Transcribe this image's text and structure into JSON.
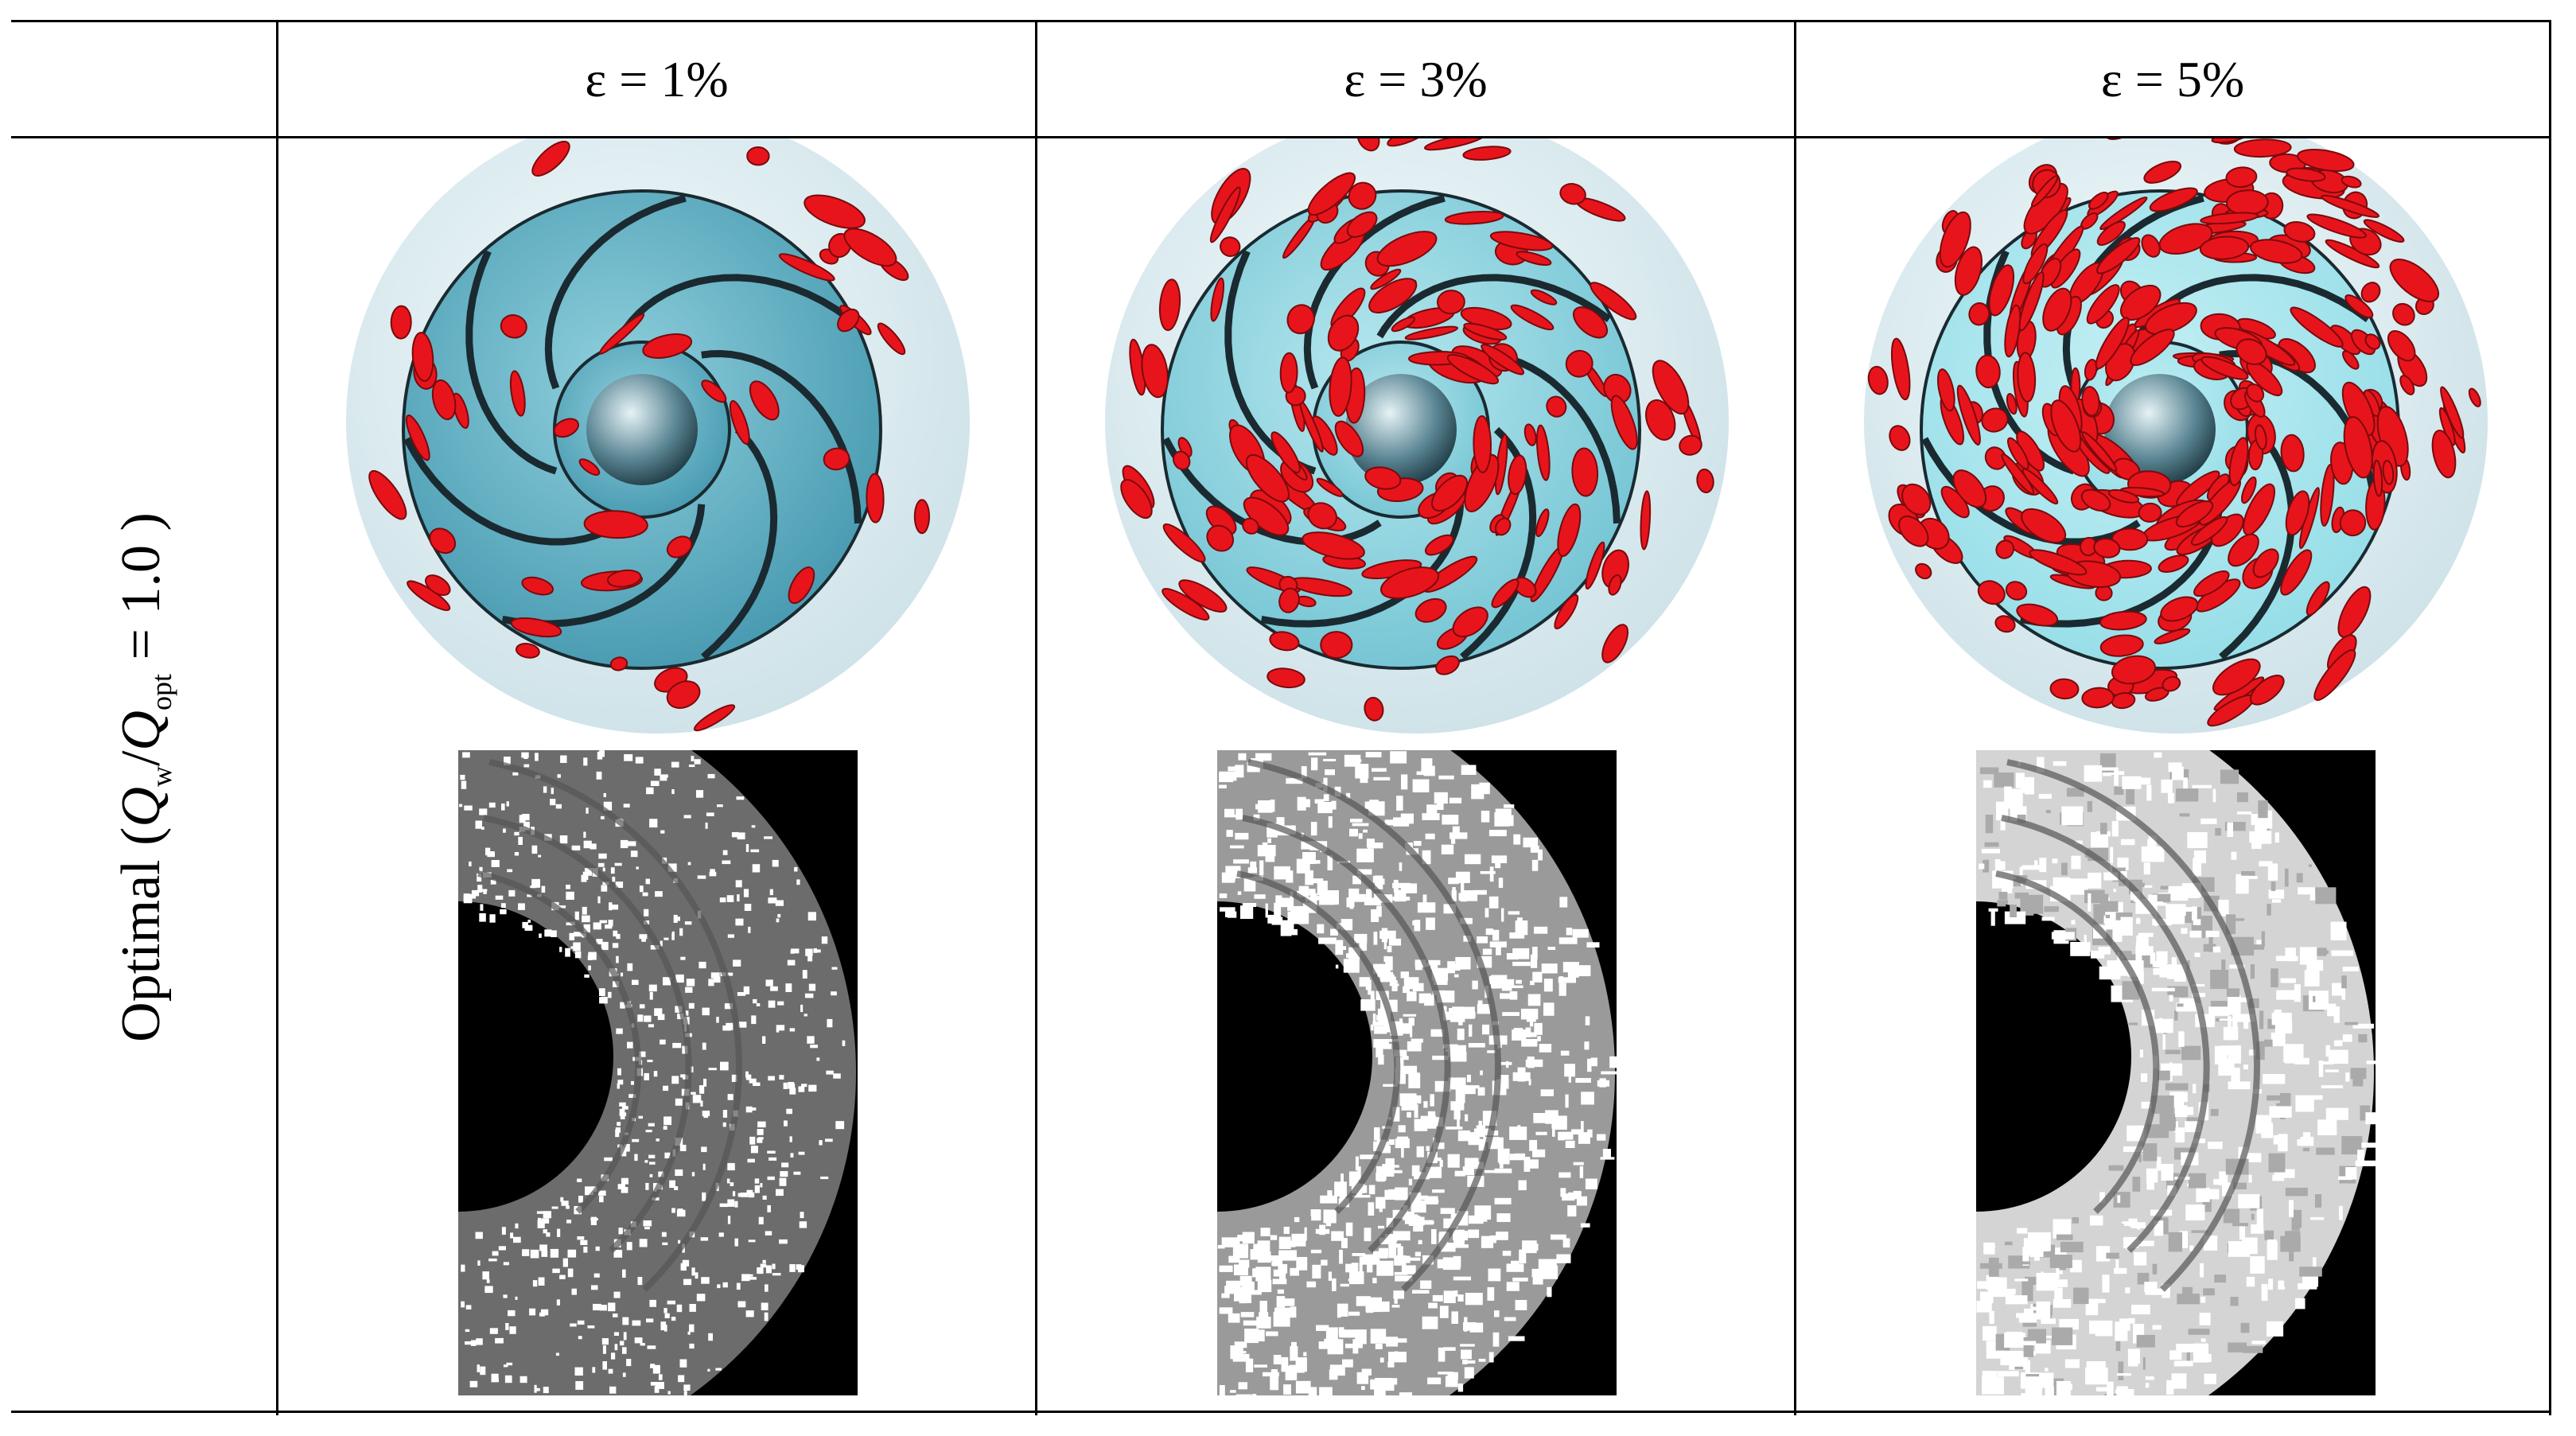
{
  "table": {
    "columns": [
      "ε = 1%",
      "ε = 3%",
      "ε = 5%"
    ],
    "rows": [
      {
        "label_parts": [
          "Optimal (",
          "Q",
          "w",
          "/",
          "Q",
          "opt",
          " = 1.0 )"
        ]
      }
    ]
  }
}
